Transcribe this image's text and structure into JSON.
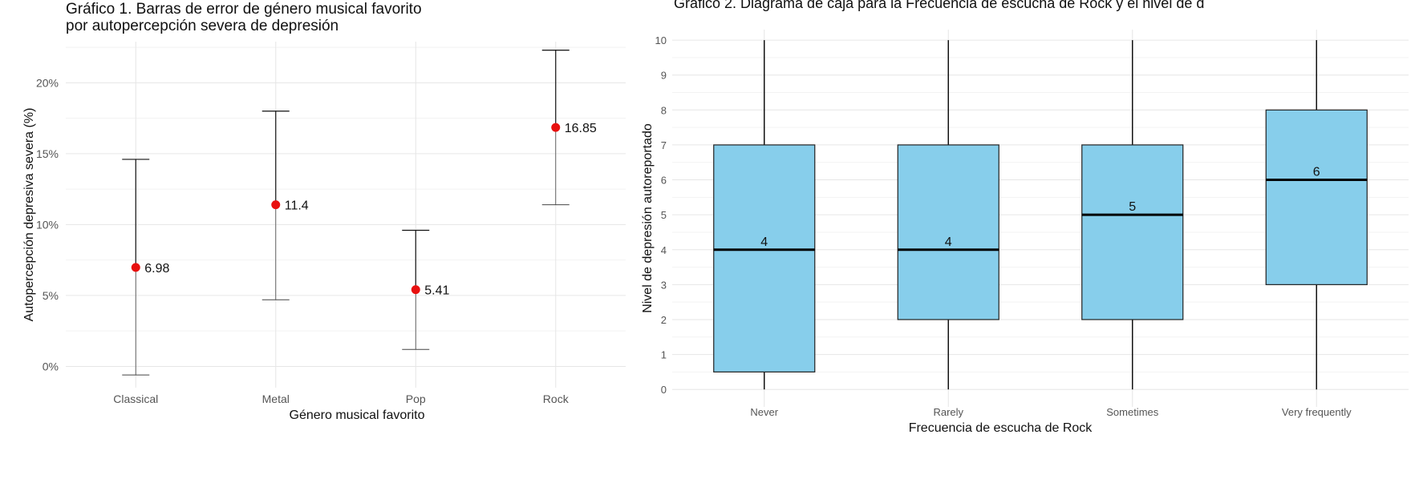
{
  "chart_data": [
    {
      "type": "errorbar",
      "title_line1": "Gráfico 1. Barras de error de género musical favorito",
      "title_line2": "por autopercepción severa de depresión",
      "xlabel": "Género musical favorito",
      "ylabel": "Autopercepción depresiva severa (%)",
      "categories": [
        "Classical",
        "Metal",
        "Pop",
        "Rock"
      ],
      "values": [
        6.98,
        11.4,
        5.41,
        16.85
      ],
      "value_labels": [
        "6.98",
        "11.4",
        "5.41",
        "16.85"
      ],
      "lower": [
        -0.6,
        4.7,
        1.2,
        11.4
      ],
      "upper": [
        14.6,
        18.0,
        9.6,
        22.3
      ],
      "yticks": [
        0,
        5,
        10,
        15,
        20
      ],
      "ytick_labels": [
        "0%",
        "5%",
        "10%",
        "15%",
        "20%"
      ],
      "ylim": [
        -1.5,
        22.9
      ],
      "grid": true,
      "point_color": "#e8100f"
    },
    {
      "type": "boxplot",
      "title": "Gráfico 2. Diagrama de caja para la Frecuencia de escucha de Rock y el nivel de d",
      "xlabel": "Frecuencia de escucha de Rock",
      "ylabel": "Nivel de depresión autoreportado",
      "categories": [
        "Never",
        "Rarely",
        "Sometimes",
        "Very frequently"
      ],
      "boxes": [
        {
          "min": 0,
          "q1": 0.5,
          "median": 4,
          "q3": 7,
          "max": 10,
          "label": "4"
        },
        {
          "min": 0,
          "q1": 2,
          "median": 4,
          "q3": 7,
          "max": 10,
          "label": "4"
        },
        {
          "min": 0,
          "q1": 2,
          "median": 5,
          "q3": 7,
          "max": 10,
          "label": "5"
        },
        {
          "min": 0,
          "q1": 3,
          "median": 6,
          "q3": 8,
          "max": 10,
          "label": "6"
        }
      ],
      "yticks": [
        0,
        1,
        2,
        3,
        4,
        5,
        6,
        7,
        8,
        9,
        10
      ],
      "ytick_labels": [
        "0",
        "1",
        "2",
        "3",
        "4",
        "5",
        "6",
        "7",
        "8",
        "9",
        "10"
      ],
      "ylim": [
        -0.5,
        10.3
      ],
      "grid": true,
      "box_fill": "#87ceeb"
    }
  ]
}
